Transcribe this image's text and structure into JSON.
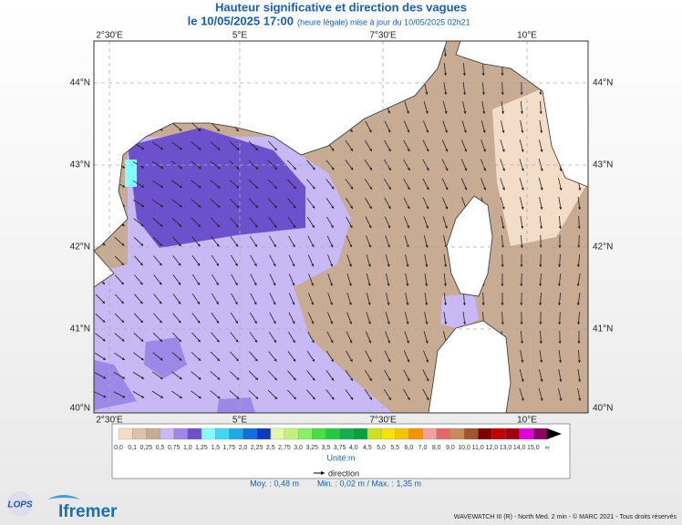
{
  "header": {
    "title": "Hauteur significative et direction des vagues",
    "date": "le 10/05/2025 17:00",
    "update": "(heure légale) mise à jour du 10/05/2025 02h21"
  },
  "map": {
    "lon_labels": [
      "2°30'E",
      "5°E",
      "7°30'E",
      "10°E"
    ],
    "lat_labels": [
      "44°N",
      "43°N",
      "42°N",
      "41°N",
      "40°N"
    ]
  },
  "colorbar": {
    "labels": [
      "0,0",
      "0,1",
      "0,25",
      "0,5",
      "0,75",
      "1,0",
      "1,25",
      "1,5",
      "1,75",
      "2,0",
      "2,25",
      "2,5",
      "2,75",
      "3,0",
      "3,25",
      "3,5",
      "3,75",
      "4,0",
      "4,5",
      "5,0",
      "5,5",
      "6,0",
      "7,0",
      "8,0",
      "9,0",
      "10,0",
      "11,0",
      "12,0",
      "13,0",
      "14,0",
      "15,0",
      "∞"
    ],
    "colors": [
      "#f3dcc8",
      "#dcc3ac",
      "#c7ab92",
      "#c8b8f4",
      "#9c88e6",
      "#6c50cc",
      "#80ffff",
      "#40d8f4",
      "#20a8e8",
      "#1070dc",
      "#1038c0",
      "#e4f8a8",
      "#c4f080",
      "#88f064",
      "#44e044",
      "#20cc40",
      "#10b050",
      "#08a040",
      "#cce020",
      "#f4e400",
      "#f4c400",
      "#f49400",
      "#f4a0a0",
      "#e46868",
      "#c88c5c",
      "#a05430",
      "#800000",
      "#c40000",
      "#a00010",
      "#e000e0",
      "#900060"
    ],
    "unit": "Unité:m"
  },
  "legend": {
    "direction": "direction"
  },
  "stats": {
    "mean": "Moy. : 0,48 m",
    "range": "Min. : 0,02 m / Max. : 1,35 m"
  },
  "footer": {
    "credit": "WAVEWATCH III (R) - North Med. 2 min - © MARC 2021 - Tous droits réservés"
  },
  "logos": {
    "lops": "LOPS",
    "ifremer": "Ifremer"
  }
}
